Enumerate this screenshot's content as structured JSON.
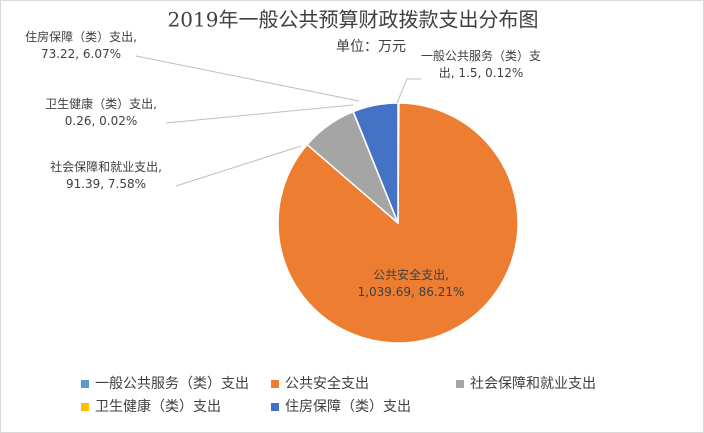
{
  "chart_data": {
    "type": "pie",
    "title": "2019年一般公共预算财政拨款支出分布图",
    "subtitle": "单位：万元",
    "categories": [
      "一般公共服务（类）支出",
      "公共安全支出",
      "社会保障和就业支出",
      "卫生健康（类）支出",
      "住房保障（类）支出"
    ],
    "values": [
      1.5,
      1039.69,
      91.39,
      0.26,
      73.22
    ],
    "value_labels": [
      "一般公共服务（类）支出, 1.5, 0.12%",
      "公共安全支出, 1,039.69, 86.21%",
      "社会保障和就业支出, 91.39, 7.58%",
      "卫生健康（类）支出, 0.26, 0.02%",
      "住房保障（类）支出, 73.22, 6.07%"
    ],
    "colors": [
      "#5b9bd5",
      "#ed7d31",
      "#a5a5a5",
      "#ffc000",
      "#4472c4"
    ],
    "legend": "bottom"
  }
}
